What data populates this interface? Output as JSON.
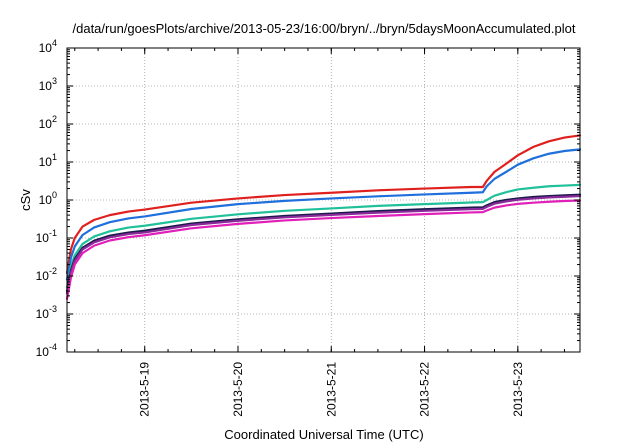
{
  "chart_data": {
    "type": "line",
    "title": "/data/run/goesPlots/archive/2013-05-23/16:00/bryn/../bryn/5daysMoonAccumulated.plot",
    "xlabel": "Coordinated Universal Time (UTC)",
    "ylabel": "cSv",
    "x_type": "date",
    "xlim": [
      "2013-05-18 04:00",
      "2013-05-23 16:00"
    ],
    "x_ticks": [
      {
        "date": "2013-05-19 00:00",
        "label": "2013-5-19"
      },
      {
        "date": "2013-05-20 00:00",
        "label": "2013-5-20"
      },
      {
        "date": "2013-05-21 00:00",
        "label": "2013-5-21"
      },
      {
        "date": "2013-05-22 00:00",
        "label": "2013-5-22"
      },
      {
        "date": "2013-05-23 00:00",
        "label": "2013-5-23"
      }
    ],
    "y_scale": "log",
    "ylim": [
      0.0001,
      10000
    ],
    "y_ticks": [
      {
        "value": 0.0001,
        "mantissa": "10",
        "exp": "-4"
      },
      {
        "value": 0.001,
        "mantissa": "10",
        "exp": "-3"
      },
      {
        "value": 0.01,
        "mantissa": "10",
        "exp": "-2"
      },
      {
        "value": 0.1,
        "mantissa": "10",
        "exp": "-1"
      },
      {
        "value": 1,
        "mantissa": "10",
        "exp": "0"
      },
      {
        "value": 10,
        "mantissa": "10",
        "exp": "1"
      },
      {
        "value": 100,
        "mantissa": "10",
        "exp": "2"
      },
      {
        "value": 1000,
        "mantissa": "10",
        "exp": "3"
      },
      {
        "value": 10000,
        "mantissa": "10",
        "exp": "4"
      }
    ],
    "grid": true,
    "series": [
      {
        "color": "#e0201e",
        "x": [
          "2013-05-18 04:00",
          "2013-05-18 05:00",
          "2013-05-18 06:00",
          "2013-05-18 08:00",
          "2013-05-18 11:00",
          "2013-05-18 15:00",
          "2013-05-18 20:00",
          "2013-05-19 00:00",
          "2013-05-19 12:00",
          "2013-05-20 00:00",
          "2013-05-20 12:00",
          "2013-05-21 00:00",
          "2013-05-21 12:00",
          "2013-05-22 00:00",
          "2013-05-22 12:00",
          "2013-05-22 15:00",
          "2013-05-22 16:00",
          "2013-05-22 18:00",
          "2013-05-22 21:00",
          "2013-05-23 00:00",
          "2013-05-23 04:00",
          "2013-05-23 08:00",
          "2013-05-23 12:00",
          "2013-05-23 16:00"
        ],
        "y": [
          0.012,
          0.05,
          0.1,
          0.2,
          0.3,
          0.4,
          0.5,
          0.56,
          0.85,
          1.1,
          1.35,
          1.55,
          1.8,
          2.0,
          2.2,
          2.2,
          3.2,
          5.5,
          9,
          15,
          25,
          35,
          44,
          50
        ]
      },
      {
        "color": "#1f6fdc",
        "x": [
          "2013-05-18 04:00",
          "2013-05-18 05:00",
          "2013-05-18 06:00",
          "2013-05-18 08:00",
          "2013-05-18 11:00",
          "2013-05-18 15:00",
          "2013-05-18 20:00",
          "2013-05-19 00:00",
          "2013-05-19 12:00",
          "2013-05-20 00:00",
          "2013-05-20 12:00",
          "2013-05-21 00:00",
          "2013-05-21 12:00",
          "2013-05-22 00:00",
          "2013-05-22 12:00",
          "2013-05-22 15:00",
          "2013-05-22 16:00",
          "2013-05-22 18:00",
          "2013-05-22 21:00",
          "2013-05-23 00:00",
          "2013-05-23 04:00",
          "2013-05-23 08:00",
          "2013-05-23 12:00",
          "2013-05-23 16:00"
        ],
        "y": [
          0.008,
          0.03,
          0.06,
          0.12,
          0.19,
          0.26,
          0.33,
          0.37,
          0.58,
          0.78,
          0.95,
          1.1,
          1.25,
          1.4,
          1.55,
          1.6,
          2.3,
          3.6,
          5.5,
          8.5,
          12.5,
          16.5,
          19.5,
          21.5
        ]
      },
      {
        "color": "#20c09a",
        "x": [
          "2013-05-18 04:00",
          "2013-05-18 05:00",
          "2013-05-18 06:00",
          "2013-05-18 08:00",
          "2013-05-18 11:00",
          "2013-05-18 15:00",
          "2013-05-18 20:00",
          "2013-05-19 00:00",
          "2013-05-19 12:00",
          "2013-05-20 00:00",
          "2013-05-20 12:00",
          "2013-05-21 00:00",
          "2013-05-21 12:00",
          "2013-05-22 00:00",
          "2013-05-22 12:00",
          "2013-05-22 15:00",
          "2013-05-22 16:00",
          "2013-05-22 18:00",
          "2013-05-22 21:00",
          "2013-05-23 00:00",
          "2013-05-23 04:00",
          "2013-05-23 08:00",
          "2013-05-23 12:00",
          "2013-05-23 16:00"
        ],
        "y": [
          0.005,
          0.018,
          0.035,
          0.07,
          0.11,
          0.15,
          0.19,
          0.21,
          0.32,
          0.42,
          0.52,
          0.6,
          0.7,
          0.78,
          0.86,
          0.88,
          1.0,
          1.3,
          1.6,
          1.9,
          2.1,
          2.3,
          2.4,
          2.5
        ]
      },
      {
        "color": "#1a1a4a",
        "x": [
          "2013-05-18 04:00",
          "2013-05-18 05:00",
          "2013-05-18 06:00",
          "2013-05-18 08:00",
          "2013-05-18 11:00",
          "2013-05-18 15:00",
          "2013-05-18 20:00",
          "2013-05-19 00:00",
          "2013-05-19 12:00",
          "2013-05-20 00:00",
          "2013-05-20 12:00",
          "2013-05-21 00:00",
          "2013-05-21 12:00",
          "2013-05-22 00:00",
          "2013-05-22 12:00",
          "2013-05-22 15:00",
          "2013-05-22 16:00",
          "2013-05-22 18:00",
          "2013-05-22 21:00",
          "2013-05-23 00:00",
          "2013-05-23 04:00",
          "2013-05-23 08:00",
          "2013-05-23 12:00",
          "2013-05-23 16:00"
        ],
        "y": [
          0.004,
          0.014,
          0.028,
          0.055,
          0.085,
          0.115,
          0.14,
          0.155,
          0.24,
          0.31,
          0.38,
          0.44,
          0.51,
          0.57,
          0.63,
          0.64,
          0.72,
          0.88,
          1.0,
          1.1,
          1.2,
          1.27,
          1.33,
          1.38
        ]
      },
      {
        "color": "#8a2a9a",
        "x": [
          "2013-05-18 04:00",
          "2013-05-18 05:00",
          "2013-05-18 06:00",
          "2013-05-18 08:00",
          "2013-05-18 11:00",
          "2013-05-18 15:00",
          "2013-05-18 20:00",
          "2013-05-19 00:00",
          "2013-05-19 12:00",
          "2013-05-20 00:00",
          "2013-05-20 12:00",
          "2013-05-21 00:00",
          "2013-05-21 12:00",
          "2013-05-22 00:00",
          "2013-05-22 12:00",
          "2013-05-22 15:00",
          "2013-05-22 16:00",
          "2013-05-22 18:00",
          "2013-05-22 21:00",
          "2013-05-23 00:00",
          "2013-05-23 04:00",
          "2013-05-23 08:00",
          "2013-05-23 12:00",
          "2013-05-23 16:00"
        ],
        "y": [
          0.0035,
          0.012,
          0.025,
          0.05,
          0.077,
          0.104,
          0.128,
          0.14,
          0.22,
          0.285,
          0.35,
          0.405,
          0.465,
          0.52,
          0.575,
          0.585,
          0.66,
          0.8,
          0.92,
          1.01,
          1.1,
          1.17,
          1.22,
          1.27
        ]
      },
      {
        "color": "#e020b8",
        "x": [
          "2013-05-18 04:00",
          "2013-05-18 05:00",
          "2013-05-18 06:00",
          "2013-05-18 08:00",
          "2013-05-18 11:00",
          "2013-05-18 15:00",
          "2013-05-18 20:00",
          "2013-05-19 00:00",
          "2013-05-19 12:00",
          "2013-05-20 00:00",
          "2013-05-20 12:00",
          "2013-05-21 00:00",
          "2013-05-21 12:00",
          "2013-05-22 00:00",
          "2013-05-22 12:00",
          "2013-05-22 15:00",
          "2013-05-22 16:00",
          "2013-05-22 18:00",
          "2013-05-22 21:00",
          "2013-05-23 00:00",
          "2013-05-23 04:00",
          "2013-05-23 08:00",
          "2013-05-23 12:00",
          "2013-05-23 16:00"
        ],
        "y": [
          0.0025,
          0.009,
          0.02,
          0.04,
          0.063,
          0.086,
          0.106,
          0.118,
          0.18,
          0.235,
          0.29,
          0.335,
          0.38,
          0.425,
          0.47,
          0.48,
          0.53,
          0.63,
          0.72,
          0.79,
          0.85,
          0.9,
          0.94,
          0.97
        ]
      }
    ]
  }
}
